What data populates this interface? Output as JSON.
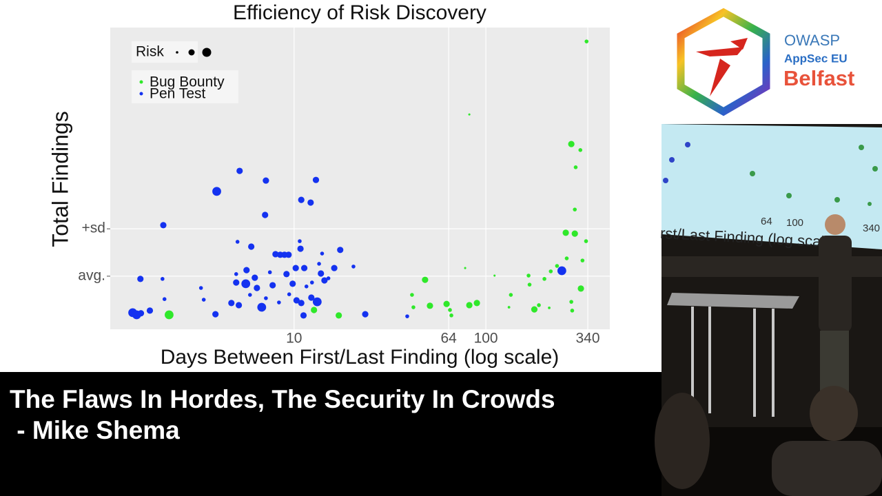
{
  "chart_data": {
    "type": "scatter",
    "title": "Efficiency of Risk Discovery",
    "x_label": "Days Between First/Last Finding (log scale)",
    "y_label": "Total Findings",
    "x_scale": "log",
    "xlim": [
      1.1,
      443
    ],
    "xticks": [
      10,
      64,
      100,
      340
    ],
    "ylim": [
      0,
      100
    ],
    "yticks": [
      {
        "value": 17.6,
        "label": "avg."
      },
      {
        "value": 33.3,
        "label": "+sd"
      }
    ],
    "grid": true,
    "legend_position": "top-left",
    "legend_title": "Risk",
    "series": [
      {
        "name": "Bug Bounty",
        "color": "#2fe82a",
        "x": [
          2.23,
          12.7,
          17.1,
          41.2,
          41.9,
          48.2,
          51.1,
          62.4,
          65.0,
          66.1,
          82.0,
          89.8,
          135,
          132,
          167,
          169,
          179,
          189,
          202,
          214,
          218,
          235,
          264,
          261,
          279,
          291,
          291,
          294,
          311,
          319,
          313,
          282,
          279,
          335,
          333,
          82.0,
          78.0,
          111
        ],
        "values": [
          4.8,
          6.4,
          4.6,
          11.4,
          7.3,
          16.4,
          7.8,
          8.4,
          6.4,
          4.6,
          8.0,
          8.7,
          11.4,
          7.3,
          17.8,
          14.8,
          6.6,
          8.0,
          16.7,
          7.1,
          19.2,
          21.0,
          23.5,
          32.0,
          61.4,
          39.7,
          31.7,
          53.7,
          59.4,
          22.8,
          13.5,
          6.2,
          9.1,
          95.4,
          29.2,
          71.2,
          20.3,
          17.8
        ],
        "sizes": [
          3,
          2,
          2,
          1,
          1,
          2,
          2,
          2,
          1,
          1,
          2,
          2,
          1,
          0.5,
          1,
          1,
          2,
          1,
          1,
          0.5,
          1,
          1,
          1,
          2,
          2,
          1,
          2,
          1,
          1,
          1,
          2,
          1,
          1,
          1,
          1,
          0.3,
          0.3,
          0.3
        ]
      },
      {
        "name": "Pen Test",
        "color": "#1432f0",
        "x": [
          1.44,
          1.51,
          1.59,
          1.58,
          1.77,
          2.06,
          2.11,
          2.08,
          3.27,
          3.38,
          3.89,
          3.95,
          4.71,
          5.07,
          4.99,
          4.99,
          5.15,
          5.2,
          5.6,
          5.65,
          5.89,
          5.98,
          6.24,
          6.4,
          6.78,
          7.06,
          7.13,
          7.13,
          7.48,
          7.73,
          8.0,
          8.34,
          8.47,
          8.91,
          9.13,
          9.36,
          9.43,
          9.83,
          10.2,
          10.3,
          10.7,
          10.8,
          10.9,
          10.9,
          11.3,
          11.6,
          12.2,
          12.3,
          12.4,
          13.0,
          13.2,
          13.5,
          13.8,
          14.0,
          14.4,
          15.1,
          16.2,
          17.4,
          20.4,
          23.5,
          38.9,
          11.2,
          249
        ],
        "values": [
          5.5,
          4.8,
          5.3,
          16.7,
          6.2,
          16.7,
          10.0,
          34.5,
          13.7,
          9.8,
          5.0,
          45.7,
          8.7,
          29.0,
          18.3,
          15.5,
          8.0,
          52.5,
          15.1,
          19.6,
          11.4,
          27.4,
          17.1,
          13.7,
          7.3,
          37.9,
          49.3,
          10.3,
          18.9,
          14.6,
          24.9,
          8.9,
          24.7,
          24.7,
          18.3,
          24.7,
          11.6,
          15.1,
          20.3,
          9.6,
          29.2,
          26.7,
          42.9,
          8.7,
          20.3,
          14.2,
          42.0,
          10.5,
          15.5,
          49.5,
          9.1,
          21.7,
          18.5,
          25.1,
          16.2,
          16.9,
          20.3,
          26.3,
          20.8,
          5.0,
          4.3,
          4.6,
          19.4
        ],
        "sizes": [
          3,
          3,
          2,
          2,
          2,
          1,
          1,
          2,
          1,
          1,
          2,
          3,
          2,
          1,
          1,
          2,
          2,
          2,
          3,
          2,
          1,
          2,
          2,
          2,
          3,
          2,
          2,
          1,
          1,
          2,
          2,
          1,
          2,
          2,
          2,
          2,
          1,
          2,
          2,
          2,
          1,
          2,
          2,
          2,
          2,
          1,
          2,
          2,
          1,
          2,
          3,
          1,
          2,
          1,
          2,
          1,
          2,
          2,
          1,
          2,
          1,
          2,
          3
        ]
      }
    ]
  },
  "caption": {
    "lines": [
      "The Flaws In Hordes, The Security In Crowds",
      " - Mike Shema"
    ]
  },
  "logo": {
    "brand": "OWASP",
    "event": "AppSec EU",
    "city": "Belfast"
  },
  "video": {
    "screen_axis_label": "rst/Last Finding (log scale)",
    "screen_ticks": [
      "64",
      "100",
      "340"
    ]
  }
}
